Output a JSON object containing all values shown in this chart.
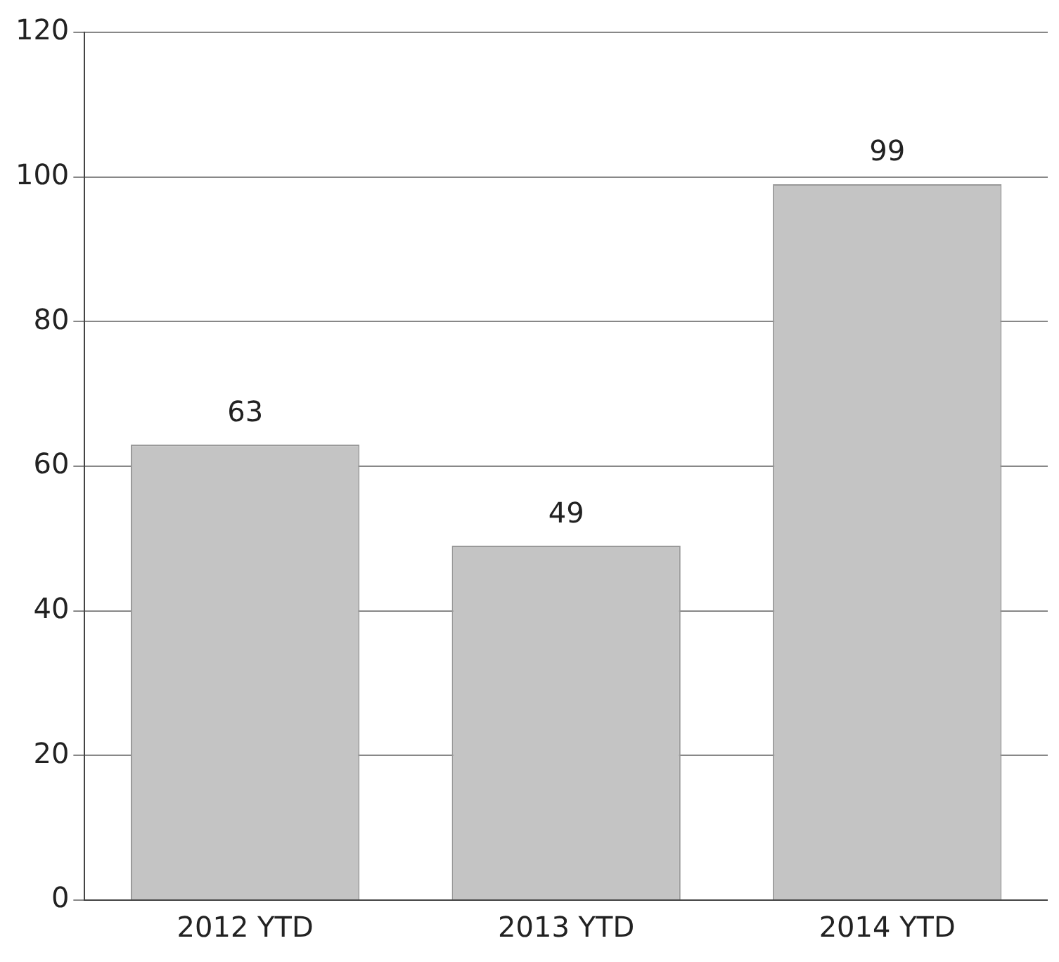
{
  "chart_data": {
    "type": "bar",
    "categories": [
      "2012 YTD",
      "2013 YTD",
      "2014 YTD"
    ],
    "values": [
      63,
      49,
      99
    ],
    "color": "#c4c4c4",
    "ylim": [
      0,
      120
    ],
    "yticks": [
      0,
      20,
      40,
      60,
      80,
      100,
      120
    ],
    "grid": "y",
    "data_labels": true,
    "legend": false
  }
}
